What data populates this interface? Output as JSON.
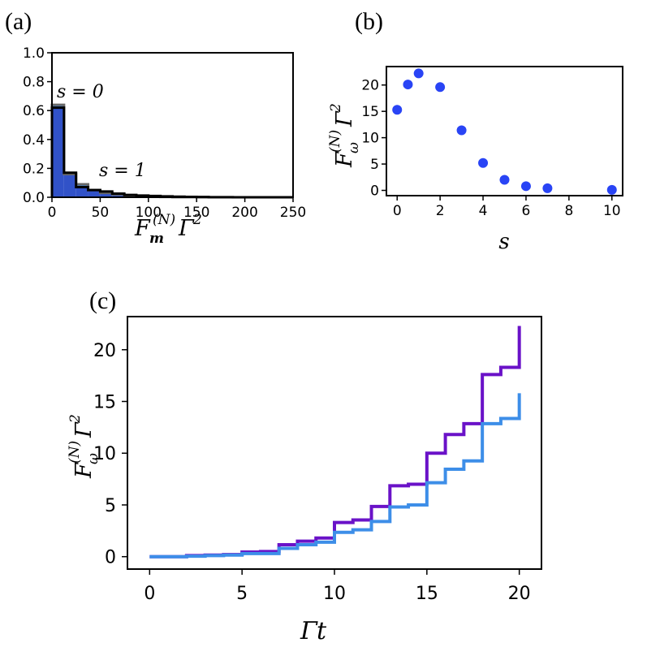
{
  "panels": {
    "a": "(a)",
    "b": "(b)",
    "c": "(c)"
  },
  "colors": {
    "light_blue": "#3d8ee8",
    "purple": "#6a12c8",
    "dot_blue": "#2944f5",
    "overlap_blue": "#3152c8",
    "gray": "#686868"
  },
  "chart_data": [
    {
      "id": "a",
      "type": "bar",
      "title": "",
      "xlabel": "F_m^(N) Γ^2",
      "ylabel": "",
      "xlim": [
        0,
        250
      ],
      "ylim": [
        0,
        1.0
      ],
      "xticks": [
        "0",
        "50",
        "100",
        "150",
        "200",
        "250"
      ],
      "yticks": [
        "0.0",
        "0.2",
        "0.4",
        "0.6",
        "0.8",
        "1.0"
      ],
      "bin_edges": [
        0,
        12.5,
        25,
        37.5,
        50,
        62.5,
        75,
        87.5,
        100,
        112.5,
        125,
        137.5,
        150,
        162.5,
        175,
        187.5,
        200,
        212.5,
        225,
        237.5,
        250
      ],
      "series": [
        {
          "name": "s = 0",
          "values": [
            0.64,
            0.16,
            0.09,
            0.05,
            0.03,
            0.02,
            0.01,
            0.004,
            0.003,
            0.002,
            0.001,
            0.001,
            0.0,
            0.0,
            0.0,
            0.0,
            0.0,
            0.0,
            0.0,
            0.0
          ]
        },
        {
          "name": "s = 1",
          "values": [
            0.62,
            0.17,
            0.07,
            0.05,
            0.04,
            0.025,
            0.016,
            0.012,
            0.009,
            0.006,
            0.004,
            0.003,
            0.002,
            0.001,
            0.001,
            0.0,
            0.0,
            0.0,
            0.0,
            0.0
          ]
        }
      ],
      "annotations": [
        "s = 0",
        "s = 1"
      ]
    },
    {
      "id": "b",
      "type": "scatter",
      "title": "",
      "xlabel": "s",
      "ylabel": "F_ω^(N) Γ^2",
      "xlim": [
        -0.5,
        10.5
      ],
      "ylim": [
        -1,
        23.5
      ],
      "xticks": [
        "0",
        "2",
        "4",
        "6",
        "8",
        "10"
      ],
      "yticks": [
        "0",
        "5",
        "10",
        "15",
        "20"
      ],
      "x": [
        0,
        0.5,
        1,
        2,
        3,
        4,
        5,
        6,
        7,
        10
      ],
      "y": [
        15.3,
        20.1,
        22.2,
        19.6,
        11.4,
        5.2,
        2.0,
        0.8,
        0.4,
        0.1
      ]
    },
    {
      "id": "c",
      "type": "line",
      "title": "",
      "xlabel": "Γt",
      "ylabel": "F_ω^(N) Γ^2",
      "xlim": [
        -1.2,
        21.2
      ],
      "ylim": [
        -1.2,
        23.2
      ],
      "xticks": [
        "0",
        "5",
        "10",
        "15",
        "20"
      ],
      "yticks": [
        "0",
        "5",
        "10",
        "15",
        "20"
      ],
      "x": [
        0,
        1,
        2,
        3,
        4,
        5,
        6,
        7,
        8,
        9,
        10,
        11,
        12,
        13,
        14,
        15,
        16,
        17,
        18,
        19,
        20
      ],
      "series": [
        {
          "name": "purple",
          "values": [
            0,
            0,
            0.1,
            0.15,
            0.2,
            0.45,
            0.5,
            1.15,
            1.5,
            1.8,
            3.3,
            3.55,
            4.85,
            6.85,
            7.0,
            10.0,
            11.8,
            12.85,
            17.6,
            18.3,
            22.3
          ]
        },
        {
          "name": "light blue",
          "values": [
            0,
            0,
            0.05,
            0.1,
            0.15,
            0.3,
            0.3,
            0.8,
            1.15,
            1.4,
            2.35,
            2.6,
            3.4,
            4.8,
            5.0,
            7.15,
            8.45,
            9.25,
            12.85,
            13.35,
            15.8
          ]
        }
      ]
    }
  ]
}
